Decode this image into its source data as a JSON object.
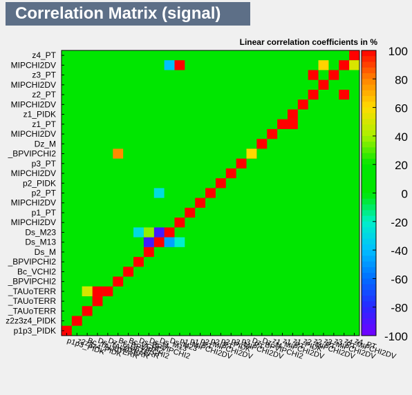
{
  "chart_data": {
    "type": "heatmap",
    "title": "Correlation Matrix (signal)",
    "subtitle": "Linear correlation coefficients in %",
    "zlim": [
      -100,
      100
    ],
    "colorbar_ticks": [
      100,
      80,
      60,
      40,
      20,
      0,
      -20,
      -40,
      -60,
      -80,
      -100
    ],
    "y_labels_top_to_bottom": [
      "z4_PT",
      "MIPCHI2DV",
      "z3_PT",
      "MIPCHI2DV",
      "z2_PT",
      "MIPCHI2DV",
      "z1_PIDK",
      "z1_PT",
      "MIPCHI2DV",
      "Dz_M",
      "_BPVIPCHI2",
      "p3_PT",
      "MIPCHI2DV",
      "p2_PIDK",
      "p2_PT",
      "MIPCHI2DV",
      "p1_PT",
      "MIPCHI2DV",
      "Ds_M23",
      "Ds_M13",
      "Ds_M",
      "_BPVIPCHI2",
      "Bc_VCHI2",
      "_BPVIPCHI2",
      "_TAUoTERR",
      "_TAUoTERR",
      "_TAUoTERR",
      "z2z3z4_PIDK",
      "p1p3_PIDK"
    ],
    "x_labels_left_to_right": [
      "p1p3_PIDK",
      "z2z3z4_PIDK",
      "Bc_TAUoTERR",
      "Ds_TAUoTERR",
      "Dz_TAUoTERR",
      "Bc_BPVIPCHI2",
      "Bc_VCHI2",
      "Ds_BPVIPCHI2",
      "Ds_M",
      "Ds_M13",
      "Ds_M23",
      "p1_MIPCHI2DV",
      "p1_PT",
      "p2_MIPCHI2DV",
      "p2_PT",
      "p2_PIDK",
      "p3_MIPCHI2DV",
      "p3_PT",
      "Dz_BPVIPCHI2",
      "Dz_M",
      "z1_MIPCHI2DV",
      "z1_PT",
      "z1_PIDK",
      "z2_MIPCHI2DV",
      "z2_PT",
      "z3_MIPCHI2DV",
      "z3_PT",
      "z4_MIPCHI2DV",
      "z4_PT"
    ],
    "sparse_cells": [
      {
        "x": "Ds_M",
        "y": "Ds_M13",
        "value": -87
      },
      {
        "x": "Ds_M13",
        "y": "Ds_M23",
        "value": -87
      },
      {
        "x": "Ds_M",
        "y": "Ds_M23",
        "value": 37
      },
      {
        "x": "Ds_M23",
        "y": "Ds_M13",
        "value": -47
      },
      {
        "x": "Ds_M23",
        "y": "MIPCHI2DV",
        "value": -39
      },
      {
        "x": "Ds_BPVIPCHI2",
        "y": "Ds_M23",
        "value": -29
      },
      {
        "x": "p1_MIPCHI2DV",
        "y": "Ds_M13",
        "value": -21
      },
      {
        "x": "Ds_M13",
        "y": "p2_PT",
        "value": -28
      },
      {
        "x": "Ds_TAUoTERR",
        "y": "_TAUoTERR",
        "value": 100
      },
      {
        "x": "Bc_TAUoTERR",
        "y": "_TAUoTERR",
        "value": 62
      },
      {
        "x": "Bc_BPVIPCHI2",
        "y": "_BPVIPCHI2",
        "value": 78
      },
      {
        "x": "Dz_BPVIPCHI2",
        "y": "_BPVIPCHI2",
        "value": 61
      },
      {
        "x": "p1_MIPCHI2DV",
        "y": "MIPCHI2DV",
        "value": 100
      },
      {
        "x": "z3_MIPCHI2DV",
        "y": "MIPCHI2DV",
        "value": 62
      },
      {
        "x": "z4_PT",
        "y": "MIPCHI2DV",
        "value": 51
      },
      {
        "x": "z1_PIDK",
        "y": "z1_PT",
        "value": 100
      },
      {
        "x": "z2_PT",
        "y": "z3_PT",
        "value": 100
      },
      {
        "x": "z4_MIPCHI2DV",
        "y": "z2_PT",
        "value": 100
      },
      {
        "x": "Bc_TAUoTERR",
        "y": "_TAUoTERR",
        "value": 50
      }
    ],
    "grid": false,
    "colorbar": "right"
  }
}
